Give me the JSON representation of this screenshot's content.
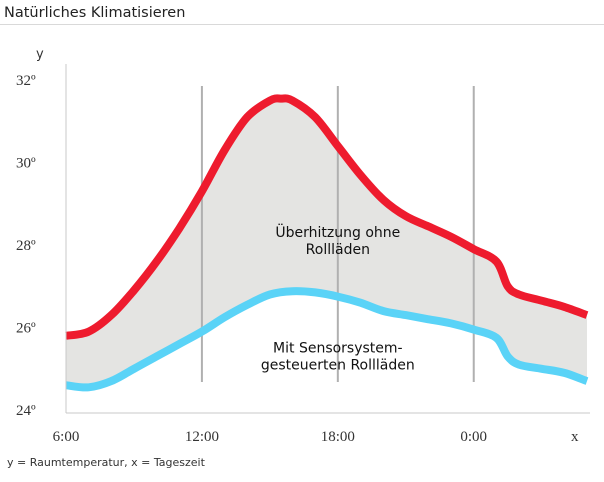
{
  "title": "Natürliches Klimatisieren",
  "caption": "y = Raumtemperatur, x = Tageszeit",
  "chart_data": {
    "type": "area",
    "title": "Natürliches Klimatisieren",
    "xlabel": "x",
    "ylabel": "y",
    "x_unit_note": "hours of day, 24+ = after midnight",
    "xlim": [
      6,
      29
    ],
    "ylim": [
      24,
      32
    ],
    "x_ticks": [
      {
        "value": 6,
        "label": "6:00"
      },
      {
        "value": 12,
        "label": "12:00"
      },
      {
        "value": 18,
        "label": "18:00"
      },
      {
        "value": 24,
        "label": "0:00"
      }
    ],
    "y_ticks": [
      {
        "value": 24,
        "label": "24º"
      },
      {
        "value": 26,
        "label": "26º"
      },
      {
        "value": 28,
        "label": "28º"
      },
      {
        "value": 30,
        "label": "30º"
      },
      {
        "value": 32,
        "label": "32º"
      }
    ],
    "vertical_gridlines_at": [
      12,
      18,
      24
    ],
    "series": [
      {
        "color": "#ee1b2e",
        "x": [
          6,
          7,
          8,
          9,
          10,
          11,
          12,
          13,
          14,
          15,
          15.5,
          16,
          17,
          18,
          19,
          20,
          21,
          22,
          23,
          24,
          25,
          25.5,
          26,
          27,
          28,
          29
        ],
        "y": [
          25.8,
          25.9,
          26.3,
          26.9,
          27.6,
          28.4,
          29.3,
          30.3,
          31.1,
          31.5,
          31.55,
          31.5,
          31.1,
          30.4,
          29.7,
          29.1,
          28.7,
          28.45,
          28.2,
          27.9,
          27.6,
          27.0,
          26.8,
          26.65,
          26.5,
          26.3
        ]
      },
      {
        "color": "#5ad3f7",
        "x": [
          6,
          7,
          8,
          9,
          10,
          11,
          12,
          13,
          14,
          15,
          16,
          17,
          18,
          19,
          20,
          21,
          22,
          23,
          24,
          25,
          25.5,
          26,
          27,
          28,
          29
        ],
        "y": [
          24.6,
          24.55,
          24.7,
          25.0,
          25.3,
          25.6,
          25.9,
          26.25,
          26.55,
          26.8,
          26.88,
          26.85,
          26.75,
          26.6,
          26.4,
          26.3,
          26.2,
          26.1,
          25.95,
          25.75,
          25.3,
          25.1,
          25.0,
          24.9,
          24.7
        ]
      }
    ],
    "annotations": [
      {
        "lines": [
          "Überhitzung ohne",
          "Rollläden"
        ],
        "x": 18,
        "y": 28.2
      },
      {
        "lines": [
          "Mit Sensorsystem-",
          "gesteuerten Rollläden"
        ],
        "x": 18,
        "y": 25.4
      }
    ],
    "area_between_series_color": "#e4e4e2",
    "axis_color": "#c8c8c8",
    "gridline_color": "#b0b0b0",
    "grid": true,
    "legend": false
  }
}
